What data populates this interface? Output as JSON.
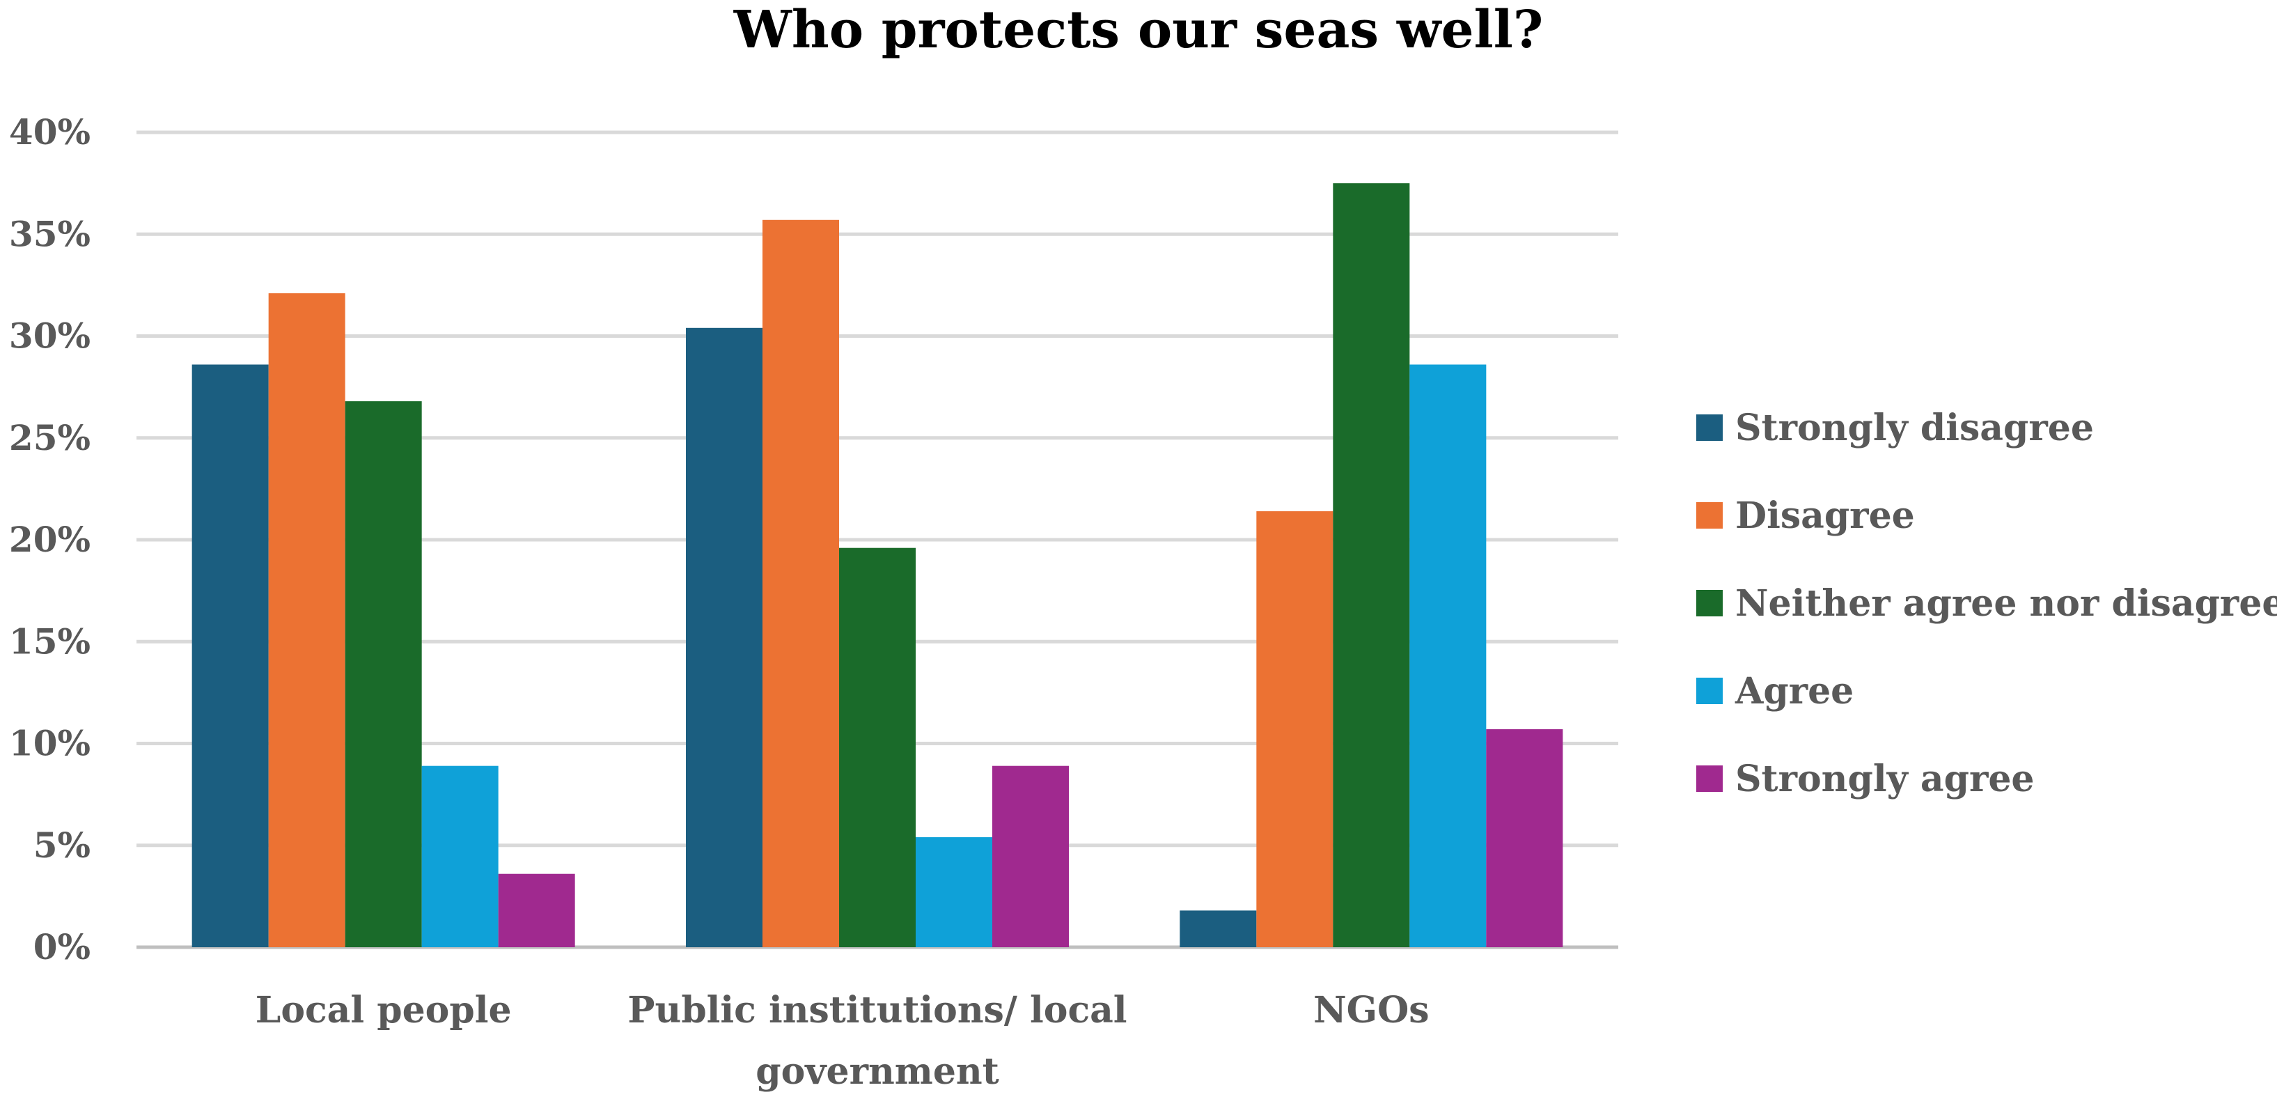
{
  "chart_data": {
    "type": "bar",
    "title": "Who protects our seas well?",
    "categories": [
      [
        "Local people"
      ],
      [
        "Public institutions/ local",
        "government"
      ],
      [
        "NGOs"
      ]
    ],
    "series": [
      {
        "name": "Strongly disagree",
        "color": "#1b5e80",
        "values": [
          28.6,
          30.4,
          1.8
        ]
      },
      {
        "name": "Disagree",
        "color": "#ec7233",
        "values": [
          32.1,
          35.7,
          21.4
        ]
      },
      {
        "name": "Neither agree nor disagree",
        "color": "#1a6b2a",
        "values": [
          26.8,
          19.6,
          37.5
        ]
      },
      {
        "name": "Agree",
        "color": "#0fa1d8",
        "values": [
          8.9,
          5.4,
          28.6
        ]
      },
      {
        "name": "Strongly agree",
        "color": "#a0298f",
        "values": [
          3.6,
          8.9,
          10.7
        ]
      }
    ],
    "yticks": [
      "0%",
      "5%",
      "10%",
      "15%",
      "20%",
      "25%",
      "30%",
      "35%",
      "40%"
    ],
    "ylim": [
      0,
      40
    ],
    "xlabel": "",
    "ylabel": "",
    "grid": true,
    "legend": "right"
  }
}
